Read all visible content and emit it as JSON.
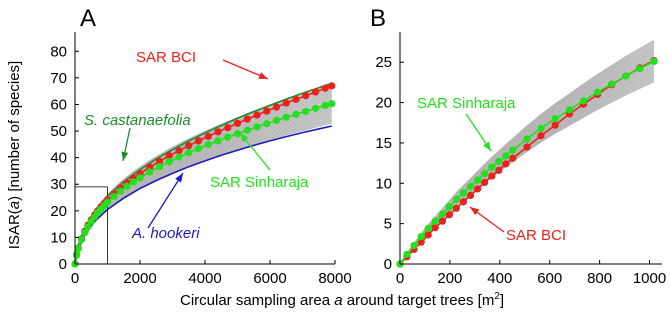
{
  "figure": {
    "y_axis_title": {
      "pre": "ISAR(",
      "italic": "a",
      "post": ") [number of species]"
    },
    "x_axis_title": {
      "pre": "Circular sampling area ",
      "italic": "a",
      "mid": " around target trees [m",
      "sup": "2",
      "post": "]"
    }
  },
  "colors": {
    "bci": "#e8231c",
    "sinharaja": "#22e01d",
    "castanaefolia": "#1f8a2a",
    "hookeri": "#1a1ac8",
    "gray_curves": "#b5b5b5",
    "axis": "#000000"
  },
  "chart_data": [
    {
      "panel": "A",
      "type": "line",
      "xlim": [
        0,
        8000
      ],
      "ylim": [
        0,
        85
      ],
      "xticks": [
        0,
        2000,
        4000,
        6000,
        8000
      ],
      "yticks": [
        0,
        10,
        20,
        30,
        40,
        50,
        60,
        70,
        80
      ],
      "reference_lines": {
        "x": 1000,
        "y": 29
      },
      "series": [
        {
          "name": "SAR BCI",
          "color_key": "bci",
          "markers": true,
          "points": [
            [
              0,
              0
            ],
            [
              50,
              3.5
            ],
            [
              100,
              6
            ],
            [
              200,
              9.5
            ],
            [
              300,
              12.3
            ],
            [
              400,
              14.6
            ],
            [
              500,
              16.6
            ],
            [
              600,
              18.4
            ],
            [
              700,
              20
            ],
            [
              800,
              21.5
            ],
            [
              900,
              22.8
            ],
            [
              1000,
              24.1
            ],
            [
              1200,
              26.4
            ],
            [
              1400,
              28.6
            ],
            [
              1600,
              30.5
            ],
            [
              1800,
              32.3
            ],
            [
              2000,
              34
            ],
            [
              2300,
              36.4
            ],
            [
              2600,
              38.6
            ],
            [
              2900,
              40.7
            ],
            [
              3200,
              42.6
            ],
            [
              3500,
              44.5
            ],
            [
              3800,
              46.3
            ],
            [
              4100,
              48
            ],
            [
              4400,
              49.7
            ],
            [
              4700,
              51.3
            ],
            [
              5000,
              52.9
            ],
            [
              5300,
              54.5
            ],
            [
              5600,
              56
            ],
            [
              5900,
              57.5
            ],
            [
              6200,
              59
            ],
            [
              6500,
              60.5
            ],
            [
              6800,
              61.9
            ],
            [
              7100,
              63.3
            ],
            [
              7400,
              64.7
            ],
            [
              7700,
              66.1
            ],
            [
              7900,
              67
            ]
          ]
        },
        {
          "name": "SAR Sinharaja",
          "color_key": "sinharaja",
          "markers": true,
          "points": [
            [
              0,
              0
            ],
            [
              50,
              3.3
            ],
            [
              100,
              5.8
            ],
            [
              200,
              9.2
            ],
            [
              300,
              11.8
            ],
            [
              400,
              14
            ],
            [
              500,
              16
            ],
            [
              600,
              17.7
            ],
            [
              700,
              19.3
            ],
            [
              800,
              20.7
            ],
            [
              900,
              22
            ],
            [
              1000,
              23.2
            ],
            [
              1200,
              25.4
            ],
            [
              1400,
              27.4
            ],
            [
              1600,
              29.2
            ],
            [
              1800,
              30.9
            ],
            [
              2000,
              32.4
            ],
            [
              2300,
              34.6
            ],
            [
              2600,
              36.6
            ],
            [
              2900,
              38.5
            ],
            [
              3200,
              40.2
            ],
            [
              3500,
              41.9
            ],
            [
              3800,
              43.4
            ],
            [
              4100,
              44.9
            ],
            [
              4400,
              46.3
            ],
            [
              4700,
              47.7
            ],
            [
              5000,
              49
            ],
            [
              5300,
              50.3
            ],
            [
              5600,
              51.6
            ],
            [
              5900,
              52.8
            ],
            [
              6200,
              54
            ],
            [
              6500,
              55.2
            ],
            [
              6800,
              56.3
            ],
            [
              7100,
              57.4
            ],
            [
              7400,
              58.5
            ],
            [
              7700,
              59.6
            ],
            [
              7900,
              60.3
            ]
          ]
        },
        {
          "name": "S. castanaefolia",
          "color_key": "castanaefolia",
          "markers": false,
          "points": [
            [
              0,
              0
            ],
            [
              100,
              7
            ],
            [
              300,
              13.5
            ],
            [
              600,
              19.8
            ],
            [
              1000,
              25.5
            ],
            [
              1500,
              31
            ],
            [
              2000,
              35.5
            ],
            [
              2500,
              39.5
            ],
            [
              3000,
              43
            ],
            [
              3500,
              46.3
            ],
            [
              4000,
              49.3
            ],
            [
              4500,
              52.1
            ],
            [
              5000,
              54.8
            ],
            [
              5500,
              57.3
            ],
            [
              6000,
              59.7
            ],
            [
              6500,
              62
            ],
            [
              7000,
              64.2
            ],
            [
              7500,
              66.3
            ],
            [
              7900,
              68
            ]
          ]
        },
        {
          "name": "A. hookeri",
          "color_key": "hookeri",
          "markers": false,
          "points": [
            [
              0,
              0
            ],
            [
              100,
              5.6
            ],
            [
              300,
              11
            ],
            [
              600,
              16
            ],
            [
              1000,
              20.5
            ],
            [
              1500,
              24.8
            ],
            [
              2000,
              28.4
            ],
            [
              2500,
              31.4
            ],
            [
              3000,
              34.1
            ],
            [
              3500,
              36.6
            ],
            [
              4000,
              38.8
            ],
            [
              4500,
              40.9
            ],
            [
              5000,
              42.8
            ],
            [
              5500,
              44.6
            ],
            [
              6000,
              46.3
            ],
            [
              6500,
              47.9
            ],
            [
              7000,
              49.4
            ],
            [
              7500,
              50.8
            ],
            [
              7900,
              51.9
            ]
          ]
        }
      ],
      "annotations": [
        {
          "text": "SAR BCI",
          "color_key": "bci",
          "italic": false
        },
        {
          "text": "S. castanaefolia",
          "color_key": "castanaefolia",
          "italic": true
        },
        {
          "text": "SAR Sinharaja",
          "color_key": "sinharaja",
          "italic": false
        },
        {
          "text": "A. hookeri",
          "color_key": "hookeri",
          "italic": true
        }
      ]
    },
    {
      "panel": "B",
      "type": "line",
      "xlim": [
        0,
        1050
      ],
      "ylim": [
        0,
        28
      ],
      "xticks": [
        0,
        200,
        400,
        600,
        800,
        1000
      ],
      "yticks": [
        0,
        5,
        10,
        15,
        20,
        25
      ],
      "series": [
        {
          "name": "SAR BCI",
          "color_key": "bci",
          "markers": true,
          "points": [
            [
              0,
              0
            ],
            [
              28,
              0.9
            ],
            [
              56,
              1.8
            ],
            [
              85,
              2.7
            ],
            [
              113,
              3.6
            ],
            [
              141,
              4.5
            ],
            [
              170,
              5.3
            ],
            [
              198,
              6.1
            ],
            [
              226,
              6.9
            ],
            [
              254,
              7.7
            ],
            [
              283,
              8.5
            ],
            [
              311,
              9.3
            ],
            [
              339,
              10.1
            ],
            [
              368,
              10.9
            ],
            [
              396,
              11.6
            ],
            [
              424,
              12.4
            ],
            [
              452,
              13.1
            ],
            [
              509,
              14.5
            ],
            [
              565,
              15.9
            ],
            [
              622,
              17.2
            ],
            [
              679,
              18.6
            ],
            [
              735,
              19.8
            ],
            [
              792,
              21
            ],
            [
              848,
              22.2
            ],
            [
              905,
              23.3
            ],
            [
              961,
              24.3
            ],
            [
              1018,
              25.2
            ]
          ]
        },
        {
          "name": "SAR Sinharaja",
          "color_key": "sinharaja",
          "markers": true,
          "points": [
            [
              0,
              0
            ],
            [
              28,
              1.2
            ],
            [
              56,
              2.3
            ],
            [
              85,
              3.4
            ],
            [
              113,
              4.4
            ],
            [
              141,
              5.3
            ],
            [
              170,
              6.2
            ],
            [
              198,
              7.1
            ],
            [
              226,
              8
            ],
            [
              254,
              8.8
            ],
            [
              283,
              9.6
            ],
            [
              311,
              10.4
            ],
            [
              339,
              11.2
            ],
            [
              368,
              12
            ],
            [
              396,
              12.7
            ],
            [
              424,
              13.4
            ],
            [
              452,
              14.1
            ],
            [
              509,
              15.5
            ],
            [
              565,
              16.8
            ],
            [
              622,
              18
            ],
            [
              679,
              19.1
            ],
            [
              735,
              20.2
            ],
            [
              792,
              21.3
            ],
            [
              848,
              22.3
            ],
            [
              905,
              23.3
            ],
            [
              961,
              24.2
            ],
            [
              1018,
              25.1
            ]
          ]
        }
      ],
      "annotations": [
        {
          "text": "SAR Sinharaja",
          "color_key": "sinharaja",
          "italic": false
        },
        {
          "text": "SAR BCI",
          "color_key": "bci",
          "italic": false
        }
      ]
    }
  ]
}
